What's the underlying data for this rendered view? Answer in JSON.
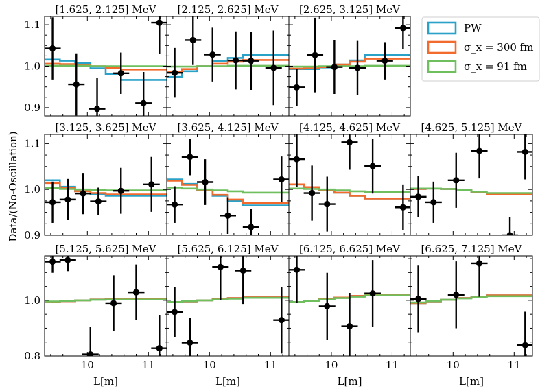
{
  "chart_data": {
    "type": "line",
    "ylabel": "Data/(No-Oscillation)",
    "xlabel": "L[m]",
    "legend": {
      "placement": "top-right",
      "entries": [
        {
          "label": "PW",
          "color": "#2aa2c8"
        },
        {
          "label": "σ_x = 300 fm",
          "color": "#f26a2c"
        },
        {
          "label": "σ_x = 91 fm",
          "color": "#6fbf5f"
        }
      ]
    },
    "x_ticks": [
      10,
      11
    ],
    "x_range": [
      9.3,
      11.3
    ],
    "bin_edges": [
      9.3,
      9.55,
      9.8,
      10.05,
      10.3,
      10.55,
      10.8,
      11.05,
      11.3
    ],
    "point_x": [
      9.43,
      9.68,
      9.93,
      10.18,
      10.43,
      10.68,
      10.93,
      11.18
    ],
    "rows": [
      {
        "ylim": [
          0.88,
          1.12
        ],
        "yticks": [
          0.9,
          1.0,
          1.1
        ],
        "ytick_labels": [
          "0.9",
          "1.0",
          "1.1"
        ]
      },
      {
        "ylim": [
          0.9,
          1.12
        ],
        "yticks": [
          0.9,
          1.0,
          1.1
        ],
        "ytick_labels": [
          "0.9",
          "1.0",
          "1.1"
        ]
      },
      {
        "ylim": [
          0.8,
          1.16
        ],
        "yticks": [
          0.8,
          1.0
        ],
        "ytick_labels": [
          "0.8",
          "1.0"
        ]
      }
    ],
    "panels": [
      {
        "title": "[1.625, 2.125]  MeV",
        "row": 0,
        "col": 0,
        "data": {
          "x": [
            9.43,
            9.82,
            10.16,
            10.55,
            10.92,
            11.18
          ],
          "y": [
            1.043,
            0.956,
            0.897,
            0.983,
            0.911,
            1.105
          ],
          "err": [
            0.075,
            0.075,
            0.075,
            0.05,
            0.075,
            0.075
          ]
        },
        "pw": [
          1.016,
          1.013,
          1.007,
          0.995,
          0.981,
          0.967
        ],
        "s300": [
          1.006,
          1.005,
          1.003,
          1.0,
          0.996,
          0.992
        ],
        "s91": [
          1.001,
          1.001,
          1.001,
          1.0,
          1.0,
          1.0
        ]
      },
      {
        "title": "[2.125, 2.625]  MeV",
        "row": 0,
        "col": 1,
        "data": {
          "x": [
            9.43,
            9.73,
            10.05,
            10.43,
            10.68,
            11.05
          ],
          "y": [
            0.984,
            1.063,
            1.028,
            1.014,
            1.013,
            0.996
          ],
          "err": [
            0.06,
            0.06,
            0.065,
            0.07,
            0.07,
            0.09
          ]
        },
        "pw": [
          0.974,
          0.988,
          1.0,
          1.012,
          1.02,
          1.027
        ],
        "s300": [
          0.986,
          0.993,
          1.0,
          1.006,
          1.011,
          1.015
        ],
        "s91": [
          0.999,
          0.999,
          1.0,
          1.0,
          1.001,
          1.001
        ]
      },
      {
        "title": "[2.625, 3.125]  MeV",
        "row": 0,
        "col": 2,
        "data": {
          "x": [
            9.43,
            9.73,
            10.05,
            10.43,
            10.88,
            11.18
          ],
          "y": [
            0.949,
            1.027,
            0.998,
            0.996,
            1.013,
            1.092
          ],
          "err": [
            0.045,
            0.09,
            0.065,
            0.065,
            0.045,
            0.05
          ]
        },
        "pw": [
          0.993,
          0.993,
          0.997,
          1.004,
          1.014,
          1.027
        ],
        "s300": [
          0.994,
          0.995,
          0.998,
          1.004,
          1.011,
          1.018
        ],
        "s91": [
          0.999,
          0.999,
          1.0,
          1.0,
          1.0,
          1.001
        ]
      },
      {
        "title": "[3.125, 3.625]  MeV",
        "row": 1,
        "col": 0,
        "data": {
          "x": [
            9.43,
            9.68,
            9.93,
            10.18,
            10.55,
            11.05
          ],
          "y": [
            0.972,
            0.978,
            0.991,
            0.974,
            0.997,
            1.011
          ],
          "err": [
            0.045,
            0.045,
            0.045,
            0.03,
            0.05,
            0.06
          ]
        },
        "pw": [
          1.02,
          1.006,
          0.996,
          0.99,
          0.986,
          0.986
        ],
        "s300": [
          1.014,
          1.004,
          0.996,
          0.992,
          0.989,
          0.989
        ],
        "s91": [
          1.003,
          1.001,
          1.0,
          0.999,
          0.998,
          0.998
        ]
      },
      {
        "title": "[3.625, 4.125]  MeV",
        "row": 1,
        "col": 1,
        "data": {
          "x": [
            9.43,
            9.68,
            9.93,
            10.3,
            10.68,
            11.18
          ],
          "y": [
            0.967,
            1.071,
            1.016,
            0.943,
            0.918,
            1.022
          ],
          "err": [
            0.04,
            0.04,
            0.05,
            0.04,
            0.04,
            0.05
          ]
        },
        "pw": [
          1.022,
          1.012,
          0.998,
          0.986,
          0.975,
          0.965
        ],
        "s300": [
          1.019,
          1.01,
          0.999,
          0.988,
          0.978,
          0.97
        ],
        "s91": [
          1.004,
          1.002,
          1.0,
          0.998,
          0.996,
          0.993
        ]
      },
      {
        "title": "[4.125, 4.625]  MeV",
        "row": 1,
        "col": 2,
        "data": {
          "x": [
            9.43,
            9.68,
            9.93,
            10.3,
            10.68,
            11.18
          ],
          "y": [
            1.066,
            0.992,
            0.968,
            1.103,
            1.051,
            0.961
          ],
          "err": [
            0.06,
            0.06,
            0.06,
            0.06,
            0.06,
            0.05
          ]
        },
        "pw": [
          1.011,
          1.005,
          0.999,
          0.993,
          0.986,
          0.98
        ],
        "s300": [
          1.011,
          1.005,
          0.999,
          0.993,
          0.986,
          0.98
        ],
        "s91": [
          1.002,
          1.001,
          1.0,
          0.998,
          0.996,
          0.994
        ]
      },
      {
        "title": "[4.625, 5.125]  MeV",
        "row": 1,
        "col": 3,
        "data": {
          "x": [
            9.43,
            9.68,
            10.05,
            10.43,
            10.93,
            11.18
          ],
          "y": [
            0.984,
            0.972,
            1.02,
            1.084,
            0.9,
            1.082
          ],
          "err": [
            0.045,
            0.045,
            0.06,
            0.06,
            0.04,
            0.06
          ]
        },
        "pw": [
          1.001,
          1.002,
          1.001,
          0.998,
          0.994,
          0.99
        ],
        "s300": [
          1.001,
          1.002,
          1.001,
          0.998,
          0.994,
          0.99
        ],
        "s91": [
          1.002,
          1.002,
          1.001,
          0.999,
          0.995,
          0.992
        ]
      },
      {
        "title": "[5.125, 5.625]  MeV",
        "row": 2,
        "col": 0,
        "data": {
          "x": [
            9.43,
            9.68,
            10.05,
            10.43,
            10.8,
            11.18
          ],
          "y": [
            1.139,
            1.145,
            0.806,
            0.99,
            1.029,
            0.828
          ],
          "err": [
            0.04,
            0.04,
            0.1,
            0.1,
            0.1,
            0.12
          ]
        },
        "pw": [
          0.994,
          0.997,
          1.0,
          1.003,
          1.005,
          1.005
        ],
        "s300": [
          0.994,
          0.997,
          1.0,
          1.003,
          1.005,
          1.005
        ],
        "s91": [
          0.996,
          0.998,
          1.0,
          1.002,
          1.003,
          1.003
        ]
      },
      {
        "title": "[5.625, 6.125]  MeV",
        "row": 2,
        "col": 1,
        "data": {
          "x": [
            9.43,
            9.68,
            10.18,
            10.55,
            11.18
          ],
          "y": [
            0.958,
            0.848,
            1.12,
            1.107,
            0.929
          ],
          "err": [
            0.09,
            0.09,
            0.12,
            0.12,
            0.12
          ]
        },
        "pw": [
          0.993,
          0.996,
          1.0,
          1.004,
          1.008,
          1.011
        ],
        "s300": [
          0.993,
          0.996,
          1.0,
          1.004,
          1.008,
          1.011
        ],
        "s91": [
          0.994,
          0.997,
          1.0,
          1.003,
          1.006,
          1.009
        ]
      },
      {
        "title": "[6.125, 6.625]  MeV",
        "row": 2,
        "col": 2,
        "data": {
          "x": [
            9.43,
            9.93,
            10.3,
            10.68,
            11.18
          ],
          "y": [
            1.11,
            0.979,
            0.907,
            1.025,
            null
          ],
          "err": [
            0.12,
            0.12,
            0.12,
            0.12,
            null
          ]
        },
        "pw": [
          0.993,
          0.998,
          1.004,
          1.01,
          1.016,
          1.021
        ],
        "s300": [
          0.993,
          0.998,
          1.004,
          1.01,
          1.016,
          1.021
        ],
        "s91": [
          0.994,
          0.998,
          1.003,
          1.008,
          1.013,
          1.018
        ]
      },
      {
        "title": "[6.625, 7.125]  MeV",
        "row": 2,
        "col": 3,
        "data": {
          "x": [
            9.43,
            10.05,
            10.43,
            11.18
          ],
          "y": [
            1.005,
            1.02,
            1.133,
            0.839
          ],
          "err": [
            0.12,
            0.12,
            0.12,
            0.12
          ]
        },
        "pw": [
          0.99,
          0.996,
          1.002,
          1.008,
          1.013,
          1.018
        ],
        "s300": [
          0.99,
          0.996,
          1.002,
          1.008,
          1.013,
          1.018
        ],
        "s91": [
          0.992,
          0.997,
          1.002,
          1.007,
          1.011,
          1.015
        ]
      }
    ]
  }
}
